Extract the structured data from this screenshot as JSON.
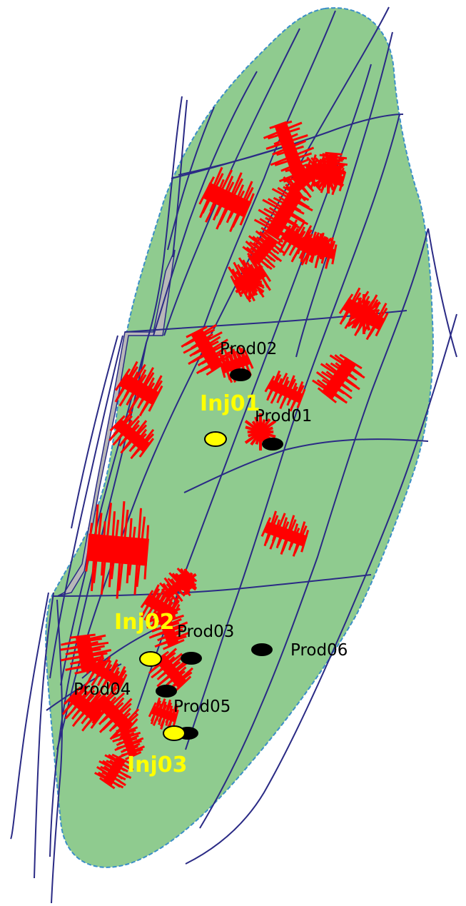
{
  "colors": {
    "reservoir_fill": "#8fcb8f",
    "reservoir_edge": "#3b8fc7",
    "fault_line": "#2a2a85",
    "fracture": "#ff0000",
    "producer": "#000000",
    "injector": "#ffff00",
    "fault_zone": "#b8b8b8"
  },
  "wells": {
    "producers": [
      {
        "name": "Prod02"
      },
      {
        "name": "Prod01"
      },
      {
        "name": "Prod03"
      },
      {
        "name": "Prod06"
      },
      {
        "name": "Prod04"
      },
      {
        "name": "Prod05"
      }
    ],
    "injectors": [
      {
        "name": "Inj01"
      },
      {
        "name": "Inj02"
      },
      {
        "name": "Inj03"
      }
    ]
  }
}
